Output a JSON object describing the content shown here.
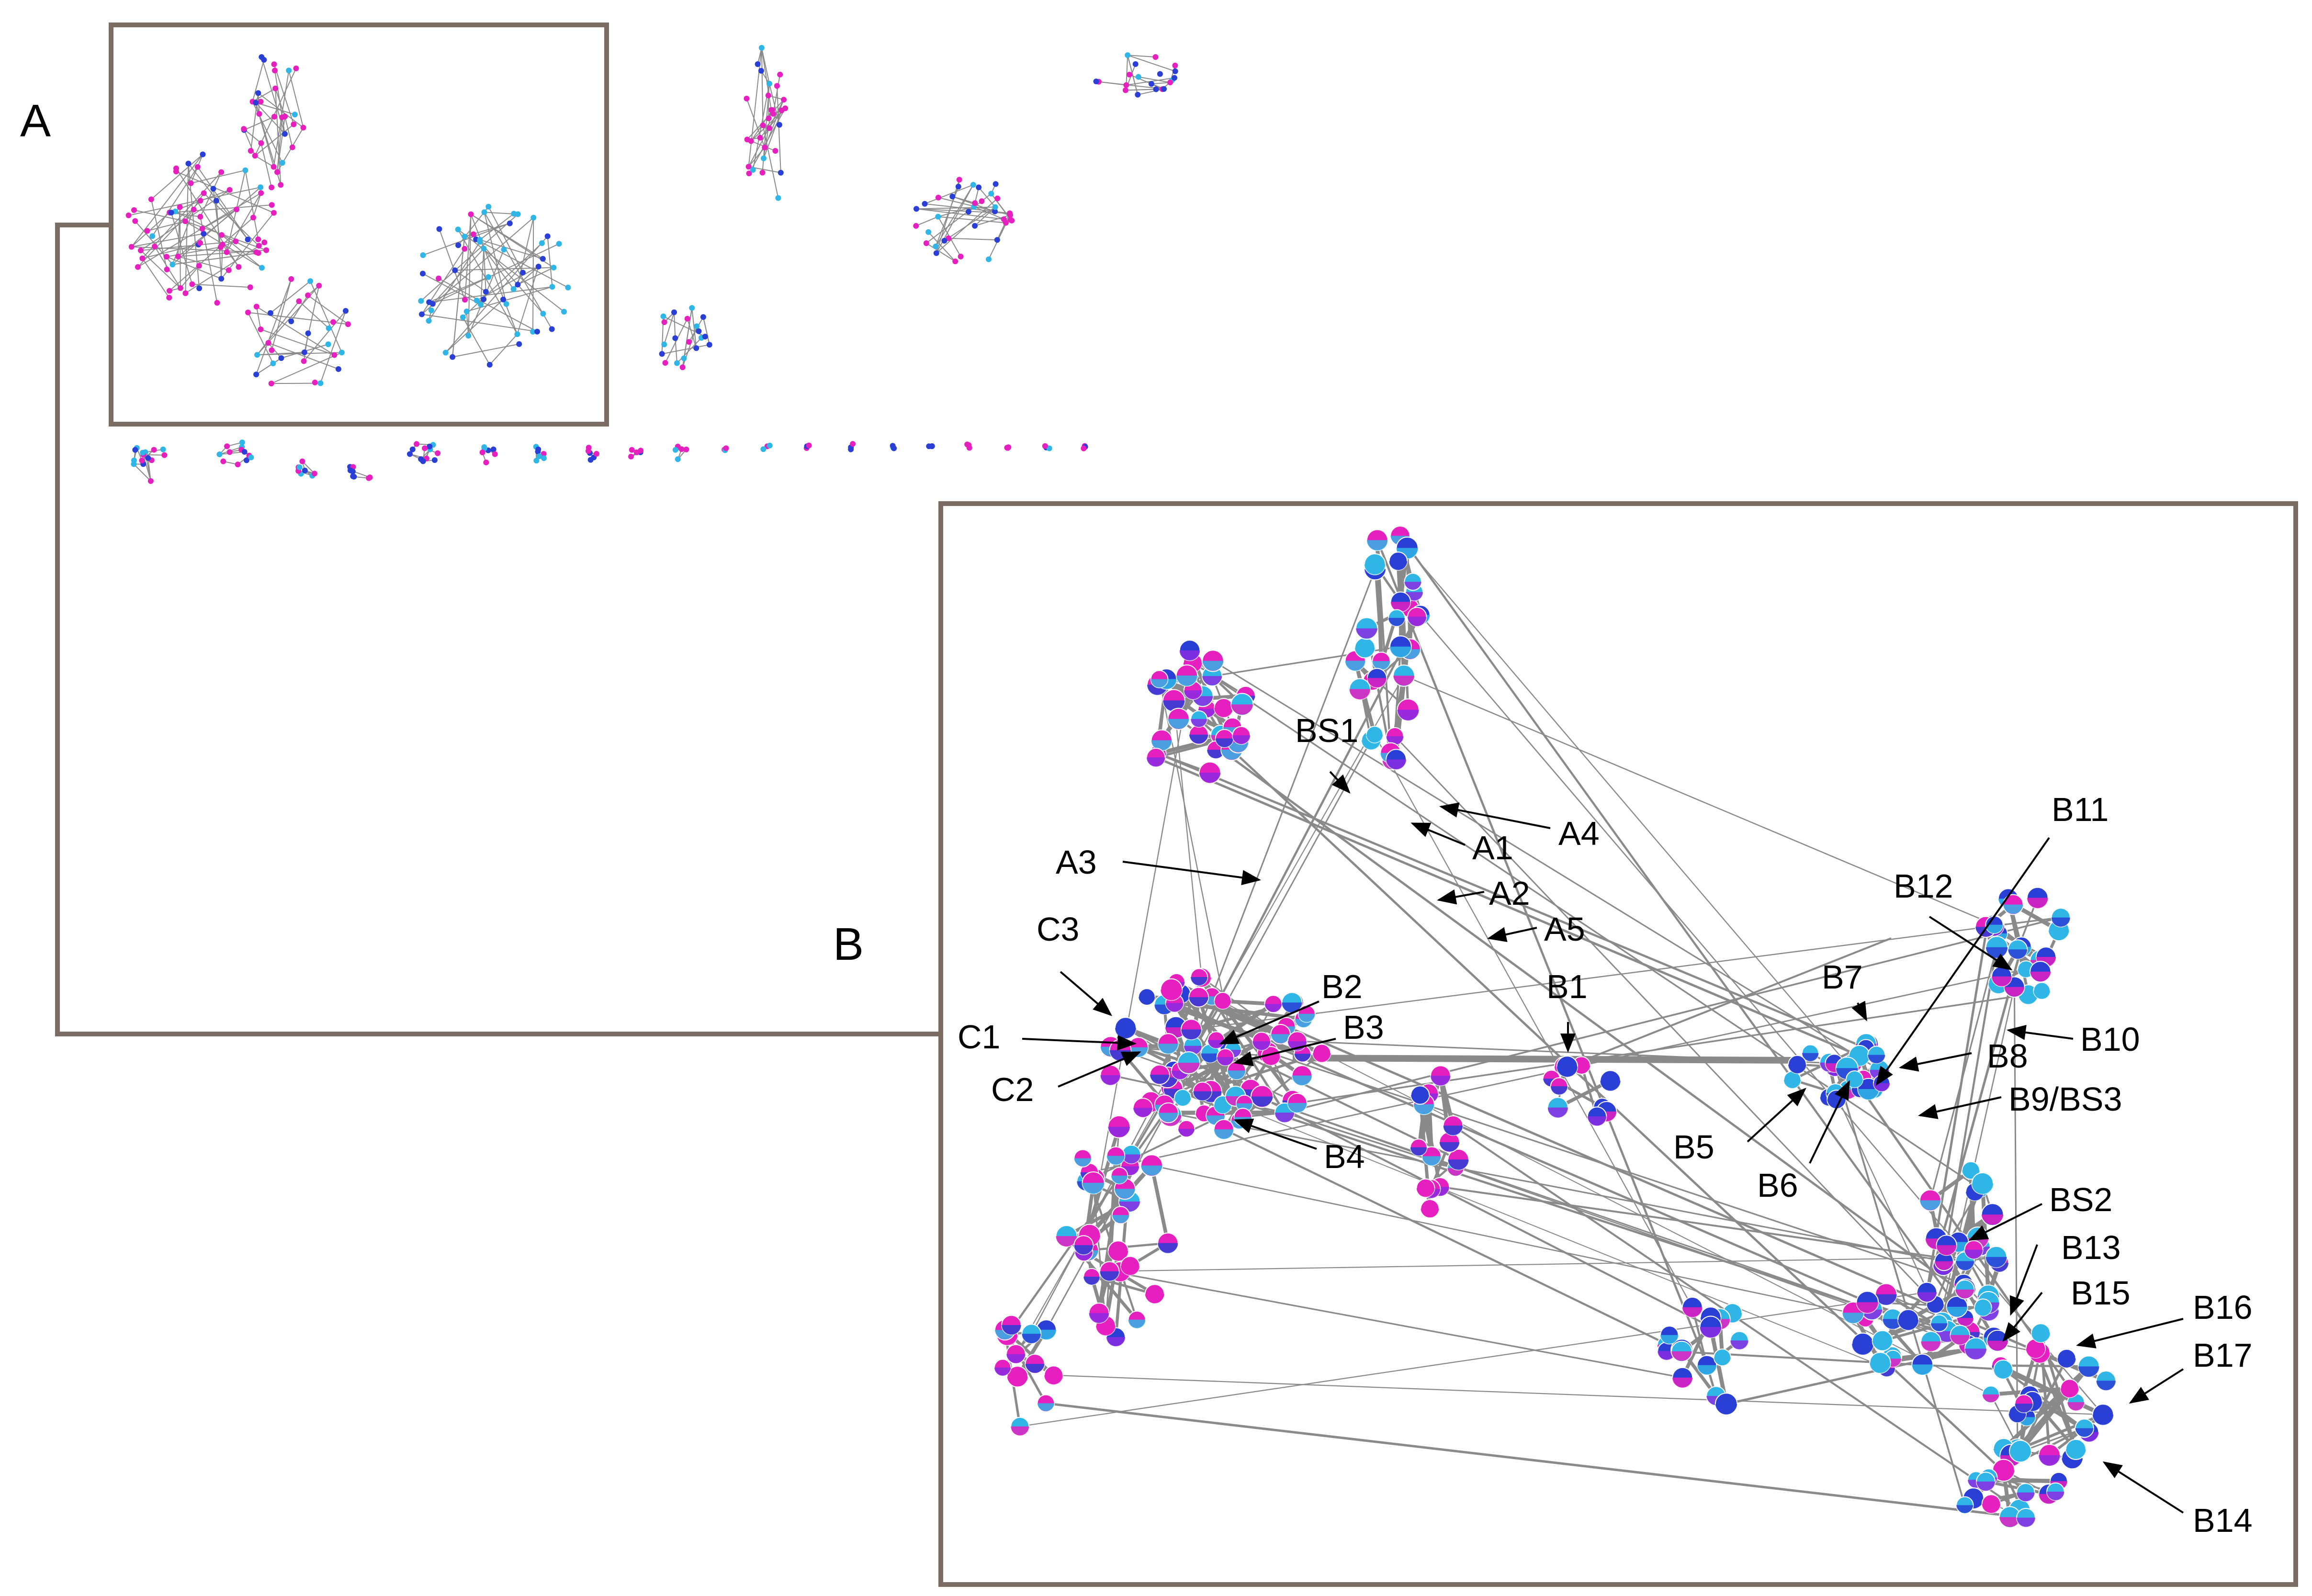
{
  "panels": {
    "a_label": "A",
    "b_label": "B"
  },
  "colors": {
    "frame": "#7b6c64",
    "edge": "#8a8a8a",
    "magenta": "#e61fbf",
    "blue": "#2a3fd6",
    "cyan": "#2fb6e6",
    "purple": "#8a2be2"
  },
  "annotations": [
    {
      "id": "BS1",
      "text": "BS1"
    },
    {
      "id": "A4",
      "text": "A4"
    },
    {
      "id": "A1",
      "text": "A1"
    },
    {
      "id": "A3",
      "text": "A3"
    },
    {
      "id": "A2",
      "text": "A2"
    },
    {
      "id": "A5",
      "text": "A5"
    },
    {
      "id": "C3",
      "text": "C3"
    },
    {
      "id": "B2",
      "text": "B2"
    },
    {
      "id": "B1",
      "text": "B1"
    },
    {
      "id": "B3",
      "text": "B3"
    },
    {
      "id": "C1",
      "text": "C1"
    },
    {
      "id": "C2",
      "text": "C2"
    },
    {
      "id": "B4",
      "text": "B4"
    },
    {
      "id": "B11",
      "text": "B11"
    },
    {
      "id": "B12",
      "text": "B12"
    },
    {
      "id": "B7",
      "text": "B7"
    },
    {
      "id": "B10",
      "text": "B10"
    },
    {
      "id": "B8",
      "text": "B8"
    },
    {
      "id": "B9BS3",
      "text": "B9/BS3"
    },
    {
      "id": "B5",
      "text": "B5"
    },
    {
      "id": "B6",
      "text": "B6"
    },
    {
      "id": "BS2",
      "text": "BS2"
    },
    {
      "id": "B13",
      "text": "B13"
    },
    {
      "id": "B15",
      "text": "B15"
    },
    {
      "id": "B16",
      "text": "B16"
    },
    {
      "id": "B17",
      "text": "B17"
    },
    {
      "id": "B14",
      "text": "B14"
    }
  ]
}
